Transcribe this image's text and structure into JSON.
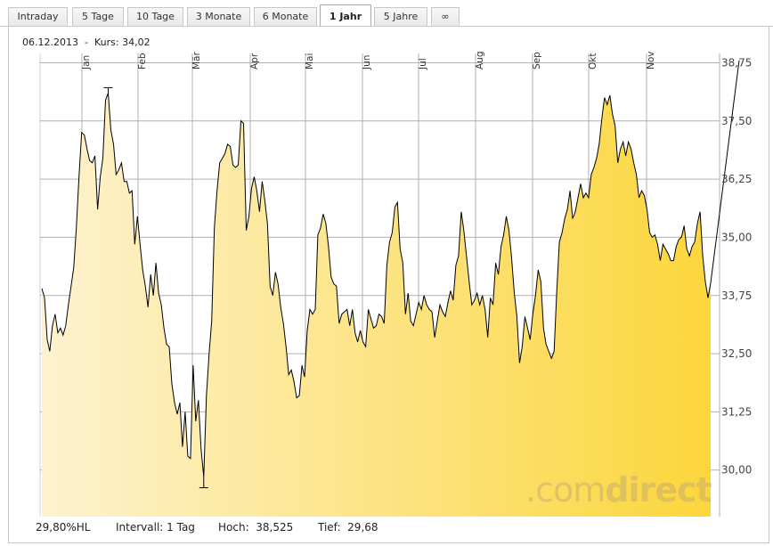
{
  "tabs": [
    {
      "label": "Intraday",
      "active": false
    },
    {
      "label": "5 Tage",
      "active": false
    },
    {
      "label": "10 Tage",
      "active": false
    },
    {
      "label": "3 Monate",
      "active": false
    },
    {
      "label": "6 Monate",
      "active": false
    },
    {
      "label": "1 Jahr",
      "active": true
    },
    {
      "label": "5 Jahre",
      "active": false
    },
    {
      "label": "∞",
      "active": false
    }
  ],
  "info": {
    "date": "06.12.2013",
    "sep": "-",
    "kurs_label": "Kurs:",
    "kurs_value": "34,02"
  },
  "footer": {
    "hl": "29,80%HL",
    "interval": "Intervall: 1 Tag",
    "hoch_label": "Hoch:",
    "hoch_value": "38,525",
    "tief_label": "Tief:",
    "tief_value": "29,68"
  },
  "watermark": {
    "part1": ".com",
    "part2": "direct"
  },
  "colors": {
    "fill_start": "#fdf2cf",
    "fill_end": "#fcd63b",
    "line": "#000000",
    "grid": "#b0b0b0"
  },
  "chart_data": {
    "type": "area",
    "title": "",
    "xlabel": "",
    "ylabel": "",
    "x_tick_labels": [
      "Jan",
      "Feb",
      "Mär",
      "Apr",
      "Mai",
      "Jun",
      "Jul",
      "Aug",
      "Sep",
      "Okt",
      "Nov"
    ],
    "y_tick_labels": [
      "30,00",
      "31,25",
      "32,50",
      "33,75",
      "35,00",
      "36,25",
      "37,50",
      "38,75"
    ],
    "y_ticks": [
      30.0,
      31.25,
      32.5,
      33.75,
      35.0,
      36.25,
      37.5,
      38.75
    ],
    "ylim": [
      29.0,
      38.95
    ],
    "grid": true,
    "y_axis_side": "right",
    "x": [
      0,
      1,
      2,
      3,
      4,
      5,
      6,
      7,
      8,
      9,
      10,
      11,
      12,
      13,
      14,
      15,
      16,
      17,
      18,
      19,
      20,
      21,
      22,
      23,
      24,
      25,
      26,
      27,
      28,
      29,
      30,
      31,
      32,
      33,
      34,
      35,
      36,
      37,
      38,
      39,
      40,
      41,
      42,
      43,
      44,
      45,
      46,
      47,
      48,
      49,
      50,
      51,
      52,
      53,
      54,
      55,
      56,
      57,
      58,
      59,
      60,
      61,
      62,
      63,
      64,
      65,
      66,
      67,
      68,
      69,
      70,
      71,
      72,
      73,
      74,
      75,
      76,
      77,
      78,
      79,
      80,
      81,
      82,
      83,
      84,
      85,
      86,
      87,
      88,
      89,
      90,
      91,
      92,
      93,
      94,
      95,
      96,
      97,
      98,
      99,
      100,
      101,
      102,
      103,
      104,
      105,
      106,
      107,
      108,
      109,
      110,
      111,
      112,
      113,
      114,
      115,
      116,
      117,
      118,
      119,
      120,
      121,
      122,
      123,
      124,
      125,
      126,
      127,
      128,
      129,
      130,
      131,
      132,
      133,
      134,
      135,
      136,
      137,
      138,
      139,
      140,
      141,
      142,
      143,
      144,
      145,
      146,
      147,
      148,
      149,
      150,
      151,
      152,
      153,
      154,
      155,
      156,
      157,
      158,
      159,
      160,
      161,
      162,
      163,
      164,
      165,
      166,
      167,
      168,
      169,
      170,
      171,
      172,
      173,
      174,
      175,
      176,
      177,
      178,
      179,
      180,
      181,
      182,
      183,
      184,
      185,
      186,
      187,
      188,
      189,
      190,
      191,
      192,
      193,
      194,
      195,
      196,
      197,
      198,
      199,
      200,
      201,
      202,
      203,
      204,
      205,
      206,
      207,
      208,
      209,
      210,
      211,
      212,
      213,
      214,
      215,
      216,
      217,
      218,
      219,
      220,
      221,
      222,
      223,
      224,
      225,
      226,
      227,
      228,
      229,
      230,
      231,
      232,
      233,
      234,
      235,
      236,
      237,
      238,
      239,
      240,
      241,
      242,
      243,
      244,
      245,
      246,
      247,
      248,
      249,
      250,
      251,
      252
    ],
    "series": [
      {
        "values": [
          33.9,
          33.7,
          32.8,
          32.55,
          33.1,
          33.35,
          32.95,
          33.05,
          32.9,
          33.1,
          33.55,
          33.95,
          34.35,
          35.2,
          36.3,
          37.25,
          37.2,
          36.9,
          36.65,
          36.6,
          36.75,
          35.6,
          36.3,
          36.7,
          37.95,
          38.1,
          37.3,
          37.0,
          36.35,
          36.45,
          36.6,
          36.2,
          36.2,
          35.95,
          36.0,
          34.85,
          35.45,
          34.85,
          34.3,
          33.95,
          33.5,
          34.2,
          33.75,
          34.45,
          33.8,
          33.55,
          33.05,
          32.7,
          32.65,
          31.85,
          31.45,
          31.2,
          31.45,
          30.5,
          31.25,
          30.3,
          30.25,
          32.25,
          31.05,
          31.5,
          30.45,
          29.85,
          31.6,
          32.5,
          33.2,
          35.2,
          36.0,
          36.6,
          36.7,
          36.8,
          37.0,
          36.95,
          36.55,
          36.5,
          36.55,
          37.5,
          37.45,
          35.15,
          35.45,
          36.05,
          36.3,
          36.0,
          35.55,
          36.2,
          35.8,
          35.3,
          33.95,
          33.75,
          34.25,
          34.0,
          33.5,
          33.15,
          32.65,
          32.05,
          32.15,
          31.9,
          31.55,
          31.6,
          32.25,
          32.0,
          33.0,
          33.45,
          33.35,
          33.45,
          35.05,
          35.2,
          35.5,
          35.3,
          34.8,
          34.15,
          34.0,
          33.95,
          33.15,
          33.35,
          33.4,
          33.45,
          33.1,
          33.45,
          32.95,
          32.75,
          33.0,
          32.75,
          32.65,
          33.45,
          33.25,
          33.05,
          33.1,
          33.35,
          33.3,
          33.15,
          34.4,
          34.9,
          35.1,
          35.65,
          35.75,
          34.75,
          34.45,
          33.35,
          33.8,
          33.2,
          33.1,
          33.35,
          33.6,
          33.45,
          33.75,
          33.55,
          33.45,
          33.4,
          32.85,
          33.2,
          33.55,
          33.4,
          33.3,
          33.6,
          33.85,
          33.65,
          34.4,
          34.6,
          35.55,
          35.15,
          34.6,
          34.05,
          33.55,
          33.65,
          33.8,
          33.55,
          33.75,
          33.45,
          32.85,
          33.7,
          33.55,
          34.45,
          34.2,
          34.8,
          35.05,
          35.45,
          35.15,
          34.55,
          33.8,
          33.3,
          32.3,
          32.65,
          33.3,
          33.05,
          32.8,
          33.35,
          33.75,
          34.3,
          34.05,
          33.05,
          32.7,
          32.55,
          32.4,
          32.55,
          33.85,
          34.9,
          35.1,
          35.4,
          35.6,
          36.0,
          35.4,
          35.55,
          35.85,
          36.15,
          35.85,
          35.95,
          35.85,
          36.35,
          36.5,
          36.7,
          37.0,
          37.55,
          38.0,
          37.85,
          38.05,
          37.65,
          37.4,
          36.6,
          36.9,
          37.05,
          36.75,
          37.05,
          36.9,
          36.6,
          36.35,
          35.85,
          36.0,
          35.9,
          35.6,
          35.1,
          35.0,
          35.05,
          34.85,
          34.5,
          34.85,
          34.75,
          34.65,
          34.5,
          34.5,
          34.8,
          34.95,
          35.0,
          35.25,
          34.75,
          34.6,
          34.8,
          34.9,
          35.3,
          35.55,
          34.6,
          34.05,
          33.7,
          34.02
        ],
        "last_segment_to": 38.8
      }
    ]
  }
}
